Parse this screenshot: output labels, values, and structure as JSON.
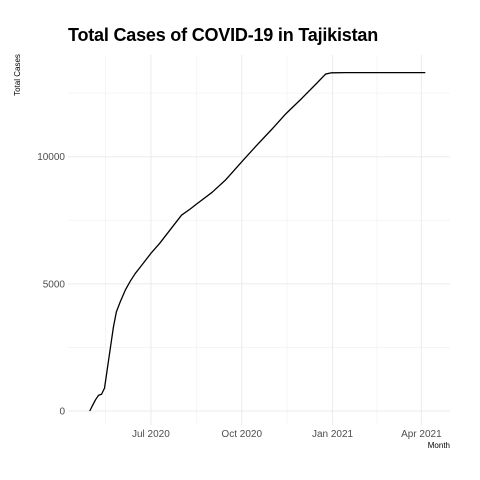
{
  "chart_data": {
    "type": "line",
    "title": "Total Cases of COVID-19 in Tajikistan",
    "xlabel": "Month",
    "ylabel": "Total Cases",
    "x_tick_labels": [
      "Jul 2020",
      "Oct 2020",
      "Jan 2021",
      "Apr 2021"
    ],
    "x_ticks": [
      "2020-07-01",
      "2020-10-01",
      "2021-01-01",
      "2021-04-01"
    ],
    "y_tick_labels": [
      "0",
      "5000",
      "10000"
    ],
    "y_ticks": [
      0,
      5000,
      10000
    ],
    "xlim": [
      "2020-04-08",
      "2021-04-30"
    ],
    "ylim": [
      -550,
      14000
    ],
    "grid": true,
    "series": [
      {
        "color": "#000000",
        "x": [
          "2020-04-30",
          "2020-05-03",
          "2020-05-06",
          "2020-05-09",
          "2020-05-12",
          "2020-05-15",
          "2020-05-18",
          "2020-05-21",
          "2020-05-24",
          "2020-05-27",
          "2020-05-31",
          "2020-06-05",
          "2020-06-10",
          "2020-06-15",
          "2020-06-20",
          "2020-06-25",
          "2020-07-01",
          "2020-07-10",
          "2020-07-20",
          "2020-08-01",
          "2020-08-10",
          "2020-08-15",
          "2020-08-20",
          "2020-09-01",
          "2020-09-15",
          "2020-10-01",
          "2020-10-15",
          "2020-11-01",
          "2020-11-15",
          "2020-12-01",
          "2020-12-15",
          "2020-12-25",
          "2020-12-31",
          "2021-01-15",
          "2021-02-15",
          "2021-03-15",
          "2021-04-05"
        ],
        "y": [
          0,
          230,
          450,
          620,
          660,
          900,
          1700,
          2500,
          3300,
          3900,
          4300,
          4750,
          5100,
          5400,
          5650,
          5900,
          6200,
          6600,
          7100,
          7700,
          7950,
          8100,
          8250,
          8600,
          9100,
          9800,
          10400,
          11100,
          11700,
          12300,
          12850,
          13250,
          13300,
          13308,
          13308,
          13308,
          13308
        ]
      }
    ]
  }
}
